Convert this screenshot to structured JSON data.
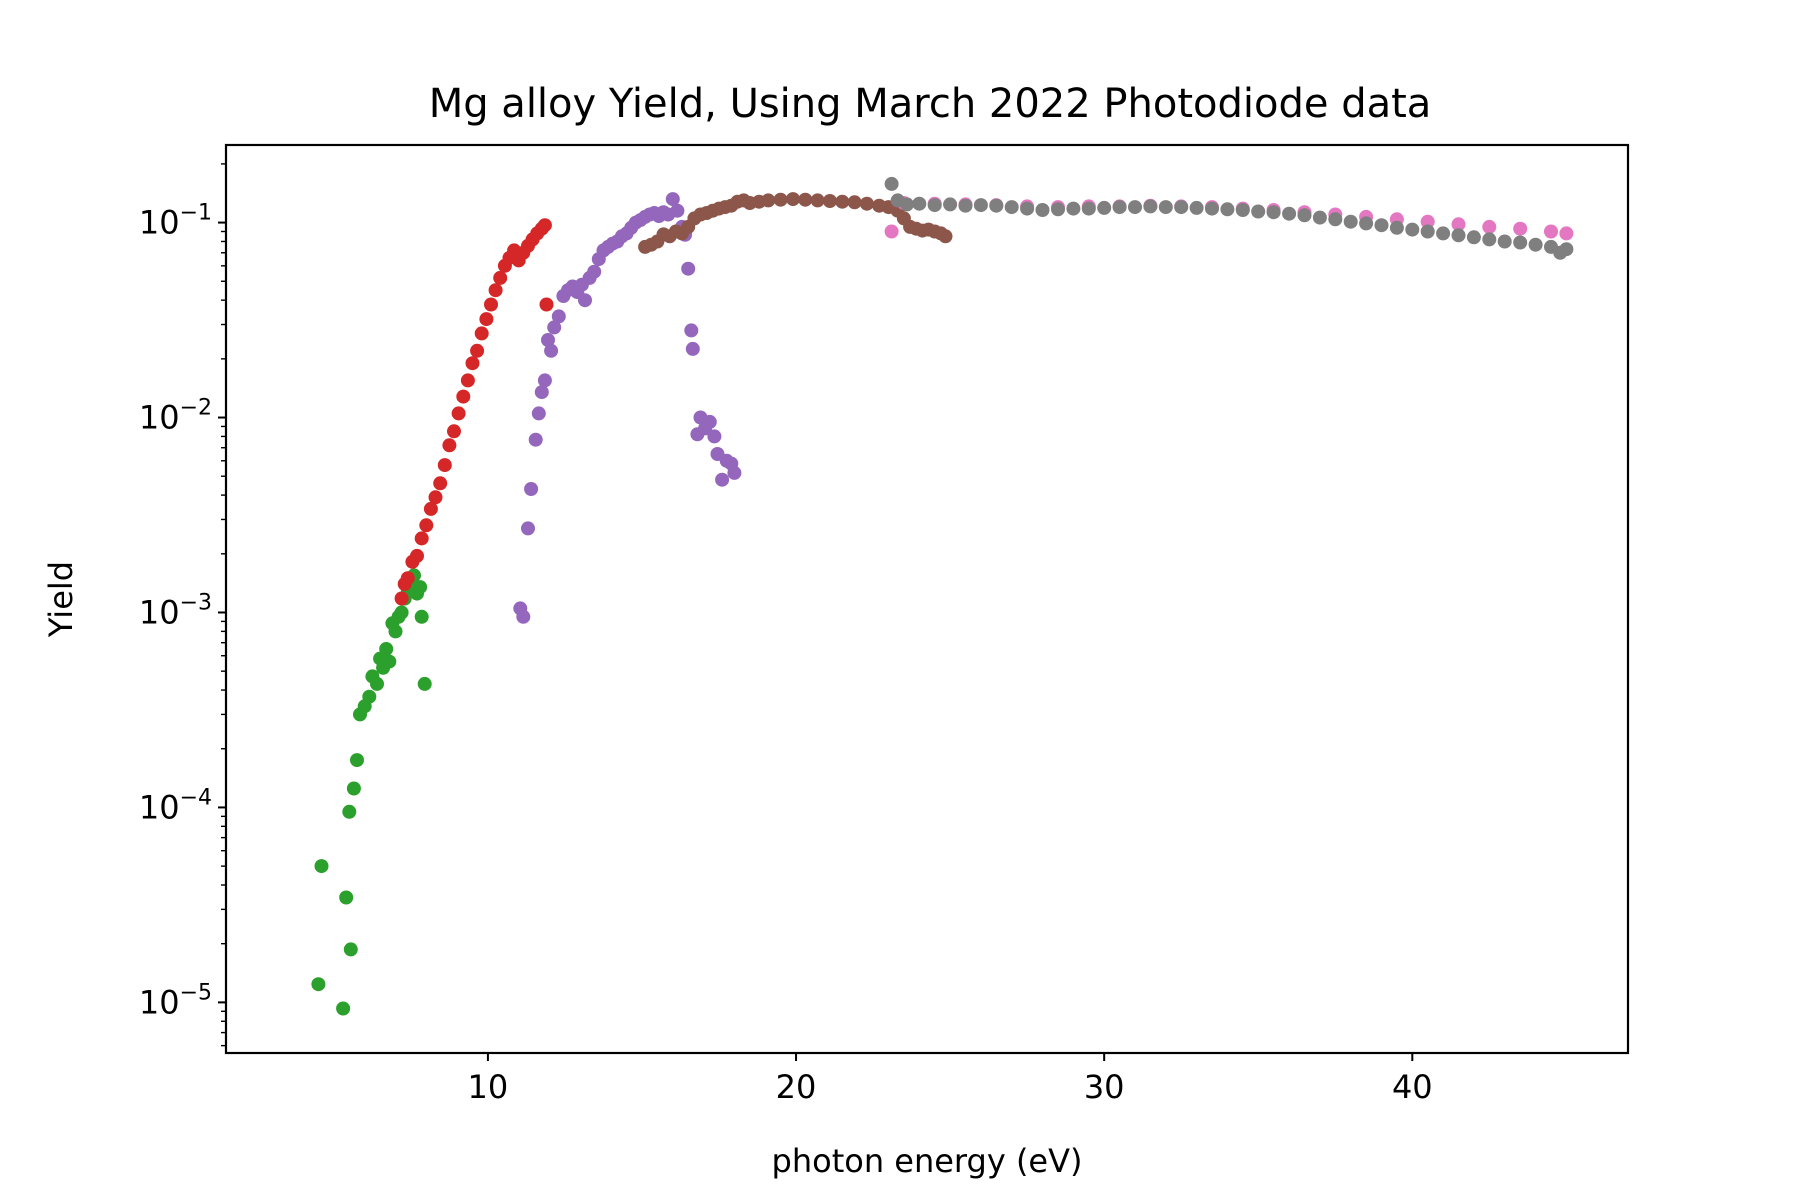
{
  "chart_data": {
    "type": "scatter",
    "title": "Mg alloy Yield, Using March 2022 Photodiode data",
    "xlabel": "photon energy (eV)",
    "ylabel": "Yield",
    "xlim": [
      1.5,
      47
    ],
    "ylim": [
      5.5e-06,
      0.25
    ],
    "yscale": "log",
    "grid": false,
    "legend": "none",
    "x_ticks": [
      {
        "value": 10,
        "label": "10"
      },
      {
        "value": 20,
        "label": "20"
      },
      {
        "value": 30,
        "label": "30"
      },
      {
        "value": 40,
        "label": "40"
      }
    ],
    "y_ticks": [
      {
        "value": 1e-05,
        "base": "10",
        "exp": "−5"
      },
      {
        "value": 0.0001,
        "base": "10",
        "exp": "−4"
      },
      {
        "value": 0.001,
        "base": "10",
        "exp": "−3"
      },
      {
        "value": 0.01,
        "base": "10",
        "exp": "−2"
      },
      {
        "value": 0.1,
        "base": "10",
        "exp": "−1"
      }
    ],
    "series": [
      {
        "color": "#2ca02c",
        "points": [
          [
            4.5,
            1.24e-05
          ],
          [
            4.6,
            5e-05
          ],
          [
            5.3,
            9.3e-06
          ],
          [
            5.4,
            3.45e-05
          ],
          [
            5.5,
            9.5e-05
          ],
          [
            5.55,
            1.87e-05
          ],
          [
            5.65,
            0.000125
          ],
          [
            5.75,
            0.000175
          ],
          [
            5.85,
            0.0003
          ],
          [
            6.0,
            0.00033
          ],
          [
            6.15,
            0.00037
          ],
          [
            6.25,
            0.00047
          ],
          [
            6.4,
            0.00043
          ],
          [
            6.5,
            0.00058
          ],
          [
            6.6,
            0.00052
          ],
          [
            6.7,
            0.00065
          ],
          [
            6.8,
            0.00056
          ],
          [
            6.9,
            0.00088
          ],
          [
            7.0,
            0.0008
          ],
          [
            7.1,
            0.00095
          ],
          [
            7.2,
            0.001
          ],
          [
            7.3,
            0.00118
          ],
          [
            7.4,
            0.00128
          ],
          [
            7.5,
            0.00145
          ],
          [
            7.6,
            0.00155
          ],
          [
            7.7,
            0.00125
          ],
          [
            7.8,
            0.00135
          ],
          [
            7.85,
            0.00095
          ],
          [
            7.95,
            0.00043
          ]
        ]
      },
      {
        "color": "#d62728",
        "points": [
          [
            7.2,
            0.00118
          ],
          [
            7.3,
            0.0014
          ],
          [
            7.4,
            0.0015
          ],
          [
            7.55,
            0.00182
          ],
          [
            7.7,
            0.00195
          ],
          [
            7.85,
            0.0024
          ],
          [
            8.0,
            0.0028
          ],
          [
            8.15,
            0.0034
          ],
          [
            8.3,
            0.0039
          ],
          [
            8.45,
            0.0046
          ],
          [
            8.6,
            0.0057
          ],
          [
            8.75,
            0.0072
          ],
          [
            8.9,
            0.0085
          ],
          [
            9.05,
            0.0105
          ],
          [
            9.2,
            0.0128
          ],
          [
            9.35,
            0.0155
          ],
          [
            9.5,
            0.019
          ],
          [
            9.65,
            0.022
          ],
          [
            9.8,
            0.027
          ],
          [
            9.95,
            0.032
          ],
          [
            10.1,
            0.038
          ],
          [
            10.25,
            0.045
          ],
          [
            10.4,
            0.052
          ],
          [
            10.55,
            0.06
          ],
          [
            10.7,
            0.066
          ],
          [
            10.85,
            0.072
          ],
          [
            11.0,
            0.064
          ],
          [
            11.15,
            0.07
          ],
          [
            11.3,
            0.076
          ],
          [
            11.45,
            0.082
          ],
          [
            11.6,
            0.088
          ],
          [
            11.75,
            0.093
          ],
          [
            11.85,
            0.097
          ],
          [
            11.9,
            0.038
          ]
        ]
      },
      {
        "color": "#9467bd",
        "points": [
          [
            11.05,
            0.00105
          ],
          [
            11.15,
            0.00095
          ],
          [
            11.3,
            0.0027
          ],
          [
            11.4,
            0.0043
          ],
          [
            11.55,
            0.0077
          ],
          [
            11.65,
            0.0105
          ],
          [
            11.75,
            0.0135
          ],
          [
            11.85,
            0.0155
          ],
          [
            11.95,
            0.025
          ],
          [
            12.05,
            0.022
          ],
          [
            12.15,
            0.029
          ],
          [
            12.3,
            0.033
          ],
          [
            12.45,
            0.042
          ],
          [
            12.6,
            0.045
          ],
          [
            12.75,
            0.047
          ],
          [
            12.9,
            0.044
          ],
          [
            13.05,
            0.048
          ],
          [
            13.15,
            0.04
          ],
          [
            13.3,
            0.052
          ],
          [
            13.45,
            0.056
          ],
          [
            13.6,
            0.065
          ],
          [
            13.75,
            0.072
          ],
          [
            13.9,
            0.075
          ],
          [
            14.05,
            0.078
          ],
          [
            14.2,
            0.08
          ],
          [
            14.35,
            0.085
          ],
          [
            14.5,
            0.088
          ],
          [
            14.65,
            0.094
          ],
          [
            14.8,
            0.1
          ],
          [
            14.95,
            0.103
          ],
          [
            15.1,
            0.107
          ],
          [
            15.25,
            0.11
          ],
          [
            15.4,
            0.112
          ],
          [
            15.55,
            0.108
          ],
          [
            15.7,
            0.113
          ],
          [
            15.85,
            0.11
          ],
          [
            16.0,
            0.132
          ],
          [
            16.15,
            0.115
          ],
          [
            16.3,
            0.095
          ],
          [
            16.4,
            0.0866
          ],
          [
            16.5,
            0.058
          ],
          [
            16.6,
            0.028
          ],
          [
            16.65,
            0.0225
          ],
          [
            16.8,
            0.0082
          ],
          [
            16.9,
            0.01
          ],
          [
            17.05,
            0.0088
          ],
          [
            17.2,
            0.0095
          ],
          [
            17.35,
            0.008
          ],
          [
            17.45,
            0.0065
          ],
          [
            17.6,
            0.0048
          ],
          [
            17.75,
            0.006
          ],
          [
            17.9,
            0.0058
          ],
          [
            18.0,
            0.0052
          ]
        ]
      },
      {
        "color": "#8c564b",
        "points": [
          [
            15.1,
            0.075
          ],
          [
            15.3,
            0.077
          ],
          [
            15.5,
            0.08
          ],
          [
            15.7,
            0.087
          ],
          [
            15.9,
            0.085
          ],
          [
            16.1,
            0.09
          ],
          [
            16.3,
            0.088
          ],
          [
            16.5,
            0.095
          ],
          [
            16.7,
            0.105
          ],
          [
            16.9,
            0.11
          ],
          [
            17.1,
            0.112
          ],
          [
            17.3,
            0.115
          ],
          [
            17.5,
            0.118
          ],
          [
            17.7,
            0.12
          ],
          [
            17.9,
            0.122
          ],
          [
            18.1,
            0.128
          ],
          [
            18.3,
            0.13
          ],
          [
            18.5,
            0.126
          ],
          [
            18.8,
            0.128
          ],
          [
            19.1,
            0.13
          ],
          [
            19.5,
            0.131
          ],
          [
            19.9,
            0.132
          ],
          [
            20.3,
            0.131
          ],
          [
            20.7,
            0.13
          ],
          [
            21.1,
            0.129
          ],
          [
            21.5,
            0.128
          ],
          [
            21.9,
            0.127
          ],
          [
            22.3,
            0.125
          ],
          [
            22.7,
            0.122
          ],
          [
            23.0,
            0.12
          ],
          [
            23.3,
            0.115
          ],
          [
            23.5,
            0.105
          ],
          [
            23.7,
            0.095
          ],
          [
            23.9,
            0.093
          ],
          [
            24.1,
            0.091
          ],
          [
            24.3,
            0.092
          ],
          [
            24.5,
            0.09
          ],
          [
            24.7,
            0.088
          ],
          [
            24.85,
            0.085
          ]
        ]
      },
      {
        "color": "#e377c2",
        "points": [
          [
            23.1,
            0.09
          ],
          [
            23.5,
            0.126
          ],
          [
            24.5,
            0.125
          ],
          [
            25.5,
            0.124
          ],
          [
            26.5,
            0.123
          ],
          [
            27.5,
            0.121
          ],
          [
            28.5,
            0.12
          ],
          [
            29.5,
            0.121
          ],
          [
            30.5,
            0.121
          ],
          [
            31.5,
            0.122
          ],
          [
            32.5,
            0.121
          ],
          [
            33.5,
            0.12
          ],
          [
            34.5,
            0.118
          ],
          [
            35.5,
            0.116
          ],
          [
            36.5,
            0.113
          ],
          [
            37.5,
            0.11
          ],
          [
            38.5,
            0.107
          ],
          [
            39.5,
            0.104
          ],
          [
            40.5,
            0.101
          ],
          [
            41.5,
            0.098
          ],
          [
            42.5,
            0.095
          ],
          [
            43.5,
            0.093
          ],
          [
            44.5,
            0.09
          ],
          [
            45.0,
            0.088
          ]
        ]
      },
      {
        "color": "#7f7f7f",
        "points": [
          [
            23.1,
            0.158
          ],
          [
            23.3,
            0.13
          ],
          [
            23.6,
            0.124
          ],
          [
            24.0,
            0.125
          ],
          [
            24.5,
            0.123
          ],
          [
            25.0,
            0.124
          ],
          [
            25.5,
            0.122
          ],
          [
            26.0,
            0.123
          ],
          [
            26.5,
            0.122
          ],
          [
            27.0,
            0.12
          ],
          [
            27.5,
            0.118
          ],
          [
            28.0,
            0.116
          ],
          [
            28.5,
            0.117
          ],
          [
            29.0,
            0.118
          ],
          [
            29.5,
            0.118
          ],
          [
            30.0,
            0.119
          ],
          [
            30.5,
            0.12
          ],
          [
            31.0,
            0.12
          ],
          [
            31.5,
            0.121
          ],
          [
            32.0,
            0.12
          ],
          [
            32.5,
            0.12
          ],
          [
            33.0,
            0.119
          ],
          [
            33.5,
            0.118
          ],
          [
            34.0,
            0.117
          ],
          [
            34.5,
            0.116
          ],
          [
            35.0,
            0.114
          ],
          [
            35.5,
            0.113
          ],
          [
            36.0,
            0.111
          ],
          [
            36.5,
            0.109
          ],
          [
            37.0,
            0.106
          ],
          [
            37.5,
            0.104
          ],
          [
            38.0,
            0.101
          ],
          [
            38.5,
            0.099
          ],
          [
            39.0,
            0.097
          ],
          [
            39.5,
            0.094
          ],
          [
            40.0,
            0.092
          ],
          [
            40.5,
            0.09
          ],
          [
            41.0,
            0.088
          ],
          [
            41.5,
            0.086
          ],
          [
            42.0,
            0.084
          ],
          [
            42.5,
            0.082
          ],
          [
            43.0,
            0.08
          ],
          [
            43.5,
            0.079
          ],
          [
            44.0,
            0.077
          ],
          [
            44.5,
            0.075
          ],
          [
            44.8,
            0.07
          ],
          [
            45.0,
            0.073
          ]
        ]
      }
    ]
  }
}
